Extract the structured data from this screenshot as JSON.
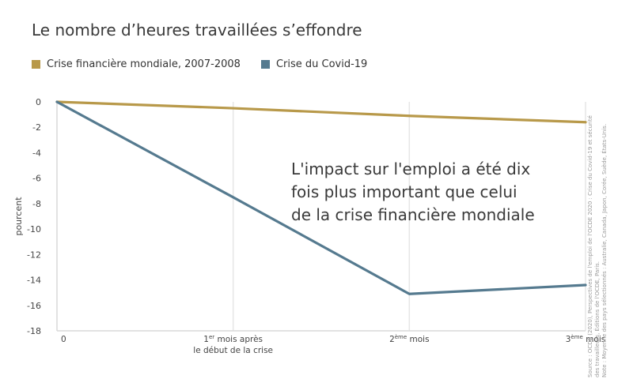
{
  "title": "Le nombre d’heures travaillées s’effondre",
  "note_lines": [
    "L'impact sur l'emploi a été dix",
    "fois plus important que celui",
    "de la crise financière mondiale"
  ],
  "source_lines": [
    "Source : OCDE (2020), Perspectives de l'emploi de l'OCDE 2020 : Crise du Covid-19 et sécurité",
    "des travailleurs, Éditions de l'OCDE, Paris.",
    "Note : Moyenne des pays sélectionnés : Australie, Canada, Japon, Corée, Suède, États-Unis."
  ],
  "chart_data": {
    "type": "line",
    "title": "Le nombre d’heures travaillées s’effondre",
    "ylabel": "pourcent",
    "xlabel": "",
    "x": [
      0,
      1,
      2,
      3
    ],
    "x_tick_labels": [
      {
        "main": "0",
        "sup": "",
        "rest": "",
        "line2": ""
      },
      {
        "main": "1",
        "sup": "er",
        "rest": " mois après",
        "line2": "le début de la crise"
      },
      {
        "main": "2",
        "sup": "ème",
        "rest": " mois",
        "line2": ""
      },
      {
        "main": "3",
        "sup": "ème",
        "rest": " mois",
        "line2": ""
      }
    ],
    "y_ticks": [
      0,
      -2,
      -4,
      -6,
      -8,
      -10,
      -12,
      -14,
      -16,
      -18
    ],
    "ylim": [
      -18,
      0
    ],
    "grid": "vertical",
    "legend_position": "top-left",
    "series": [
      {
        "name": "Crise financière mondiale, 2007-2008",
        "color": "#b8994a",
        "values": [
          0,
          -0.5,
          -1.1,
          -1.6
        ]
      },
      {
        "name": "Crise du Covid-19",
        "color": "#557a8f",
        "values": [
          0,
          -7.5,
          -15.1,
          -14.4
        ]
      }
    ]
  }
}
